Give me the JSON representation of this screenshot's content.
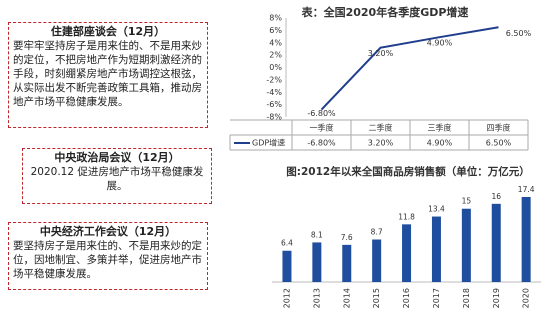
{
  "notes": [
    {
      "title": "住建部座谈会（12月）",
      "body": "要牢牢坚持房子是用来住的、不是用来炒的定位，不把房地产作为短期刺激经济的手段，时刻绷紧房地产市场调控这根弦，从实际出发不断完善政策工具箱，推动房地产市场平稳健康发展。"
    },
    {
      "title": "中央政治局会议（12月）",
      "body": "2020.12  促进房地产市场平稳健康发展。"
    },
    {
      "title": "中央经济工作会议（12月）",
      "body": "要坚持房子是用来住的、不是用来炒的定位，因地制宜、多策并举，促进房地产市场平稳健康发展。"
    }
  ],
  "chart_data": [
    {
      "type": "line",
      "title": "表：全国2020年各季度GDP增速",
      "categories": [
        "一季度",
        "二季度",
        "三季度",
        "四季度"
      ],
      "series": [
        {
          "name": "GDP增速",
          "color": "#1f3e8c",
          "values": [
            -6.8,
            3.2,
            4.9,
            6.5
          ],
          "value_labels": [
            "-6.80%",
            "3.20%",
            "4.90%",
            "6.50%"
          ]
        }
      ],
      "ylim": [
        -8,
        8
      ],
      "yticks": [
        {
          "value": -8,
          "label": "-8%"
        },
        {
          "value": -6,
          "label": "-6%"
        },
        {
          "value": -4,
          "label": "-4%"
        },
        {
          "value": -2,
          "label": "-2%"
        },
        {
          "value": 0,
          "label": "0%"
        },
        {
          "value": 2,
          "label": "2%"
        },
        {
          "value": 4,
          "label": "4%"
        },
        {
          "value": 6,
          "label": "6%"
        },
        {
          "value": 8,
          "label": "8%"
        }
      ],
      "grid": false
    },
    {
      "type": "bar",
      "title": "图:2012年以来全国商品房销售额（单位：万亿元）",
      "categories": [
        "2012",
        "2013",
        "2014",
        "2015",
        "2016",
        "2017",
        "2018",
        "2019",
        "2020"
      ],
      "values": [
        6.4,
        8.1,
        7.6,
        8.7,
        11.8,
        13.4,
        15,
        16,
        17.4
      ],
      "color": "#1f4e9e"
    }
  ]
}
